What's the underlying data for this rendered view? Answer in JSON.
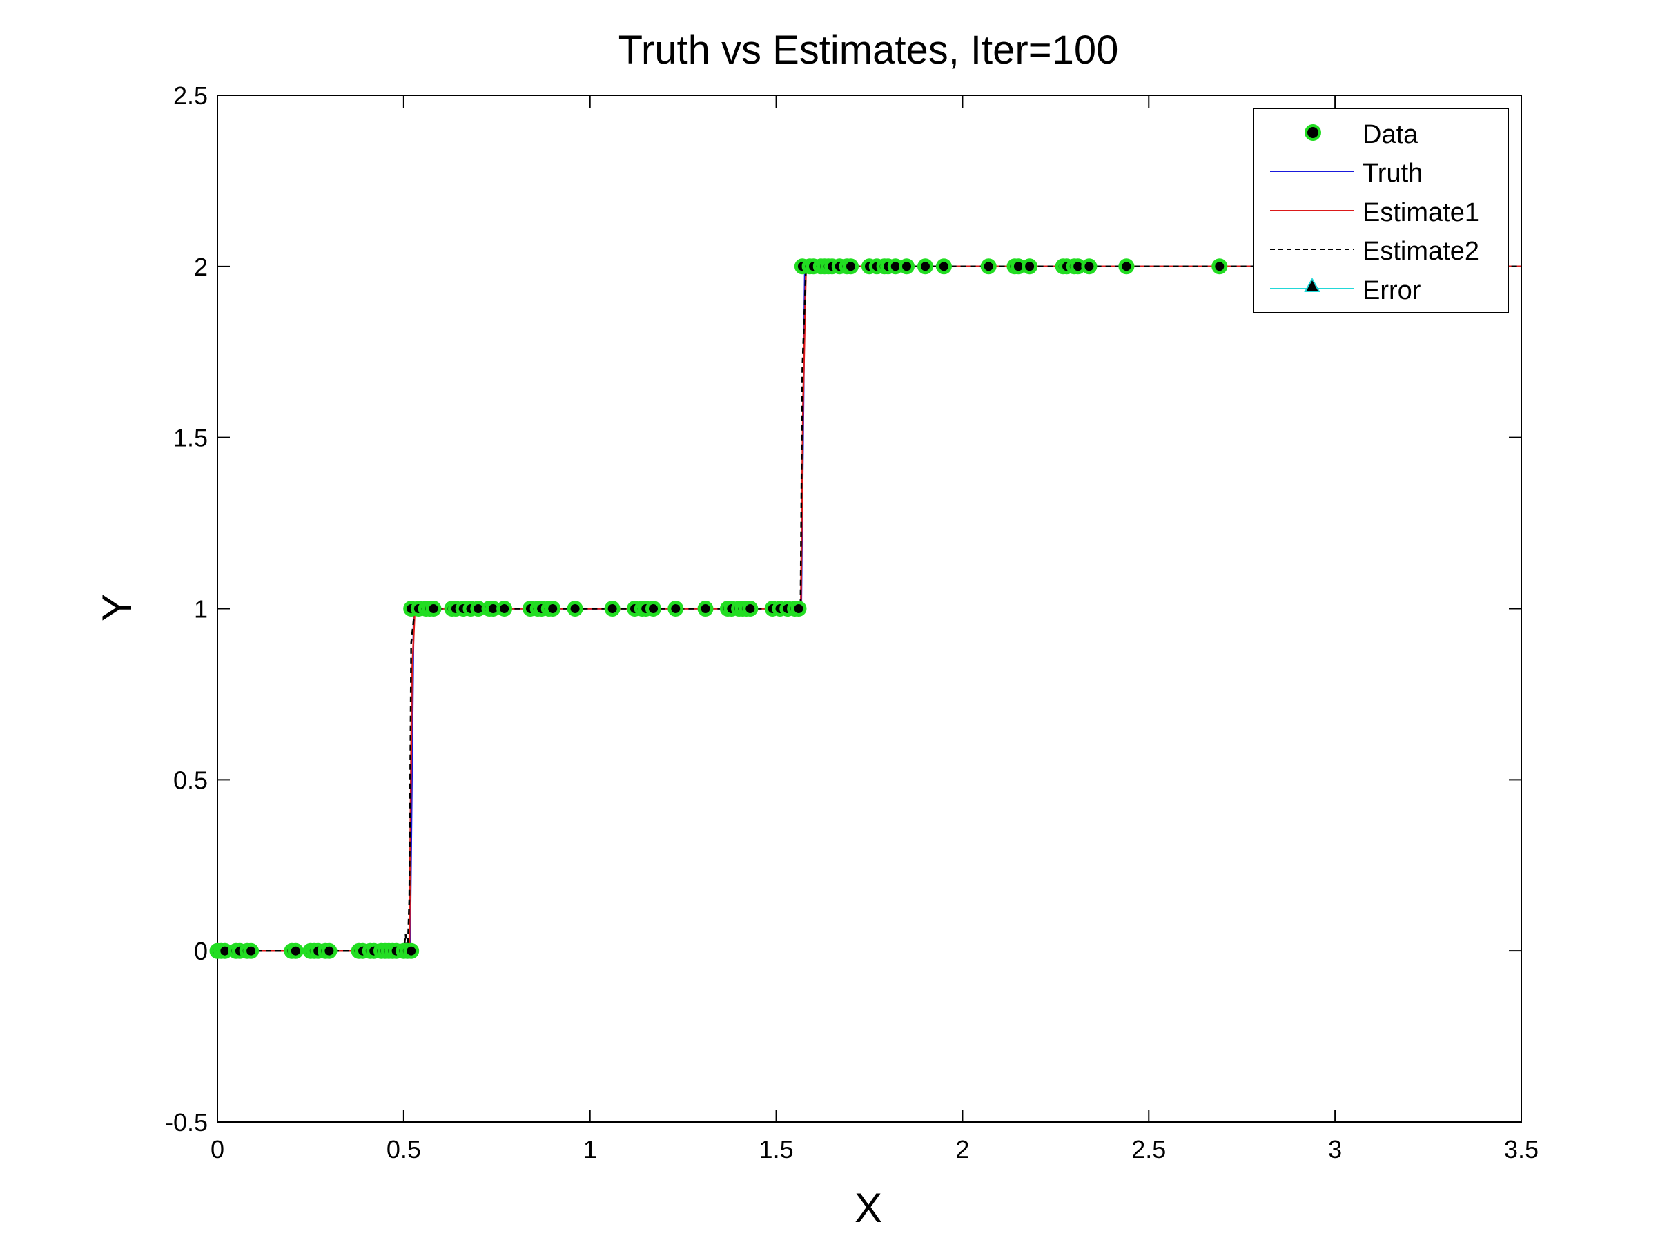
{
  "chart_data": {
    "type": "line",
    "title": "Truth vs Estimates, Iter=100",
    "xlabel": "X",
    "ylabel": "Y",
    "xlim": [
      0,
      3.5
    ],
    "ylim": [
      -0.5,
      2.5
    ],
    "xticks": [
      "0",
      "0.5",
      "1",
      "1.5",
      "2",
      "2.5",
      "3",
      "3.5"
    ],
    "yticks": [
      "-0.5",
      "0",
      "0.5",
      "1",
      "1.5",
      "2",
      "2.5"
    ],
    "grid": false,
    "legend_position": "top-right",
    "legend": [
      "Data",
      "Truth",
      "Estimate1",
      "Estimate2",
      "Error"
    ],
    "series": [
      {
        "name": "Data",
        "style": "markers",
        "color": "#000000",
        "edge_color": "#22dd22",
        "x": [
          0.0,
          0.01,
          0.02,
          0.05,
          0.06,
          0.08,
          0.09,
          0.2,
          0.21,
          0.25,
          0.26,
          0.27,
          0.29,
          0.3,
          0.38,
          0.39,
          0.41,
          0.42,
          0.44,
          0.45,
          0.46,
          0.47,
          0.48,
          0.5,
          0.51,
          0.52,
          0.52,
          0.54,
          0.56,
          0.57,
          0.58,
          0.63,
          0.64,
          0.66,
          0.68,
          0.7,
          0.73,
          0.74,
          0.77,
          0.84,
          0.86,
          0.87,
          0.89,
          0.9,
          0.96,
          1.06,
          1.12,
          1.14,
          1.15,
          1.17,
          1.23,
          1.31,
          1.37,
          1.38,
          1.4,
          1.41,
          1.42,
          1.43,
          1.49,
          1.51,
          1.53,
          1.55,
          1.56,
          1.57,
          1.59,
          1.6,
          1.62,
          1.63,
          1.64,
          1.65,
          1.67,
          1.69,
          1.7,
          1.75,
          1.77,
          1.79,
          1.8,
          1.82,
          1.85,
          1.9,
          1.95,
          2.07,
          2.14,
          2.15,
          2.18,
          2.27,
          2.28,
          2.3,
          2.31,
          2.34,
          2.44,
          2.69,
          3.0
        ],
        "y": [
          0,
          0,
          0,
          0,
          0,
          0,
          0,
          0,
          0,
          0,
          0,
          0,
          0,
          0,
          0,
          0,
          0,
          0,
          0,
          0,
          0,
          0,
          0,
          0,
          0,
          0,
          1,
          1,
          1,
          1,
          1,
          1,
          1,
          1,
          1,
          1,
          1,
          1,
          1,
          1,
          1,
          1,
          1,
          1,
          1,
          1,
          1,
          1,
          1,
          1,
          1,
          1,
          1,
          1,
          1,
          1,
          1,
          1,
          1,
          1,
          1,
          1,
          1,
          2,
          2,
          2,
          2,
          2,
          2,
          2,
          2,
          2,
          2,
          2,
          2,
          2,
          2,
          2,
          2,
          2,
          2,
          2,
          2,
          2,
          2,
          2,
          2,
          2,
          2,
          2,
          2,
          2,
          2
        ]
      },
      {
        "name": "Truth",
        "style": "solid",
        "color": "#1a1adc",
        "x": [
          0,
          0.517,
          0.527,
          1.567,
          1.577,
          3.5
        ],
        "y": [
          0,
          0,
          1,
          1,
          2,
          2
        ]
      },
      {
        "name": "Estimate1",
        "style": "solid",
        "color": "#dc1a1a",
        "x": [
          0,
          0.515,
          0.522,
          0.53,
          1.566,
          1.572,
          1.58,
          3.5
        ],
        "y": [
          0,
          0,
          0.8,
          1,
          1,
          1.6,
          2,
          2
        ]
      },
      {
        "name": "Estimate2",
        "style": "dashed",
        "color": "#000000",
        "x": [
          0,
          0.5,
          0.505,
          0.51,
          0.515,
          0.52,
          0.53,
          1.565,
          1.57,
          1.58,
          3.5
        ],
        "y": [
          0,
          0,
          0.05,
          -0.02,
          0.15,
          0.9,
          1,
          1,
          1.7,
          2,
          2
        ]
      },
      {
        "name": "Error",
        "style": "solid-triangle-markers",
        "color": "#22d8d8",
        "x": [],
        "y": []
      }
    ]
  }
}
